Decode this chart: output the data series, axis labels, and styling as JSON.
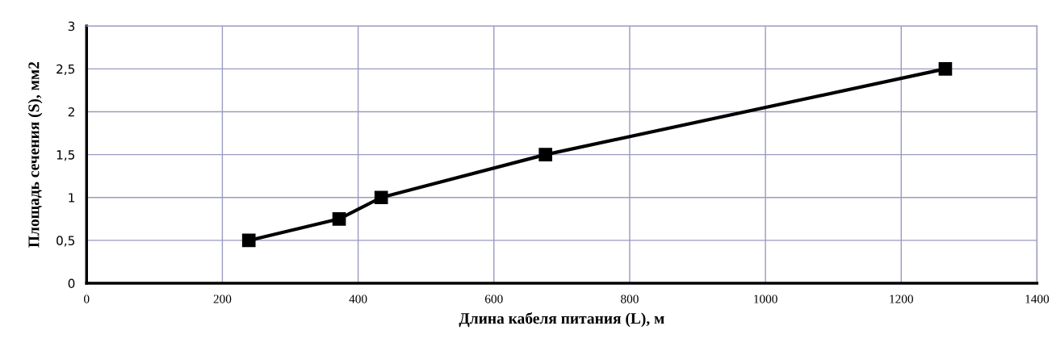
{
  "chart_data": {
    "type": "line",
    "xlabel": "Длина кабеля питания (L), м",
    "ylabel": "Площадь сечения (S), мм2",
    "x": [
      239,
      372,
      434,
      676,
      1265
    ],
    "series": [
      {
        "color": "#000000",
        "values": [
          0.5,
          0.75,
          1,
          1.5,
          2.5
        ]
      }
    ],
    "marker": "square",
    "line_style": "solid",
    "grid": true,
    "legend": false,
    "xlim": [
      0,
      1400
    ],
    "xticks": [
      0,
      200,
      400,
      600,
      800,
      1000,
      1200,
      1400
    ],
    "ylim": [
      0,
      3
    ],
    "yticks": [
      0,
      {
        "value": 0.5,
        "label": "0,5"
      },
      1,
      {
        "value": 1.5,
        "label": "1,5"
      },
      2,
      {
        "value": 2.5,
        "label": "2,5"
      },
      3
    ]
  }
}
